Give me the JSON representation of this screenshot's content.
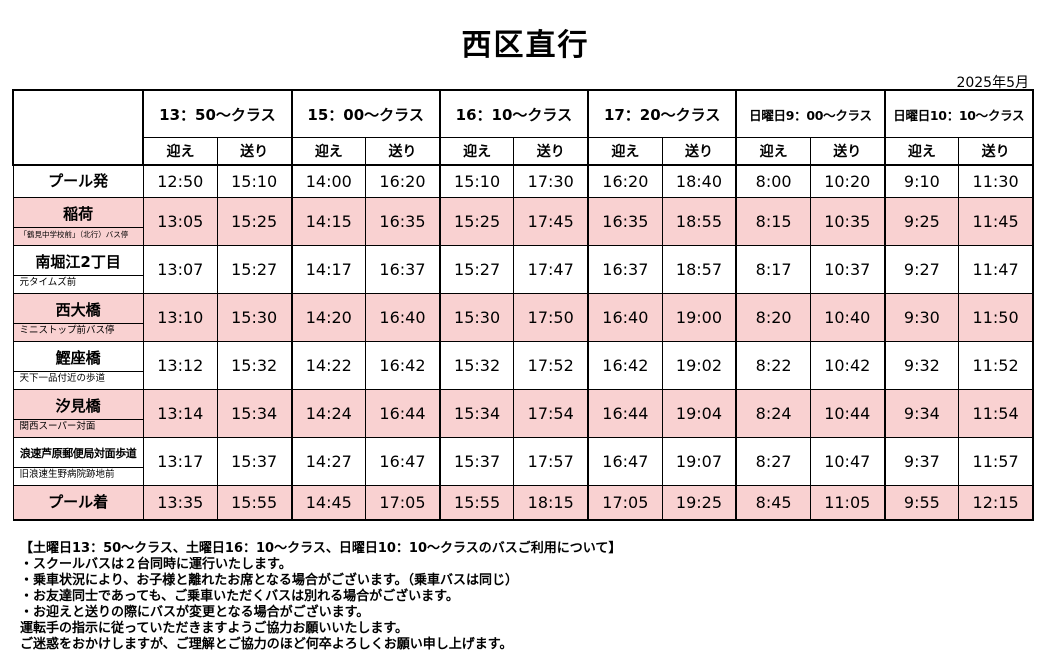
{
  "title": "西区直行",
  "date": "2025年5月",
  "classes": [
    "13：50〜クラス",
    "15：00〜クラス",
    "16：10〜クラス",
    "17：20〜クラス",
    "日曜日9：00〜クラス",
    "日曜日10：10〜クラス"
  ],
  "sub_headers": {
    "pickup": "迎え",
    "dropoff": "送り"
  },
  "rows": [
    {
      "name": "プール発",
      "note": "",
      "times": [
        "12:50",
        "15:10",
        "14:00",
        "16:20",
        "15:10",
        "17:30",
        "16:20",
        "18:40",
        "8:00",
        "10:20",
        "9:10",
        "11:30"
      ]
    },
    {
      "name": "稲荷",
      "note": "「鶴見中学校前」（北行）バス停",
      "times": [
        "13:05",
        "15:25",
        "14:15",
        "16:35",
        "15:25",
        "17:45",
        "16:35",
        "18:55",
        "8:15",
        "10:35",
        "9:25",
        "11:45"
      ]
    },
    {
      "name": "南堀江2丁目",
      "note": "元タイムズ前",
      "times": [
        "13:07",
        "15:27",
        "14:17",
        "16:37",
        "15:27",
        "17:47",
        "16:37",
        "18:57",
        "8:17",
        "10:37",
        "9:27",
        "11:47"
      ]
    },
    {
      "name": "西大橋",
      "note": "ミニストップ前バス停",
      "times": [
        "13:10",
        "15:30",
        "14:20",
        "16:40",
        "15:30",
        "17:50",
        "16:40",
        "19:00",
        "8:20",
        "10:40",
        "9:30",
        "11:50"
      ]
    },
    {
      "name": "鰹座橋",
      "note": "天下一品付近の歩道",
      "times": [
        "13:12",
        "15:32",
        "14:22",
        "16:42",
        "15:32",
        "17:52",
        "16:42",
        "19:02",
        "8:22",
        "10:42",
        "9:32",
        "11:52"
      ]
    },
    {
      "name": "汐見橋",
      "note": "関西スーパー対面",
      "times": [
        "13:14",
        "15:34",
        "14:24",
        "16:44",
        "15:34",
        "17:54",
        "16:44",
        "19:04",
        "8:24",
        "10:44",
        "9:34",
        "11:54"
      ]
    },
    {
      "name": "浪速芦原郵便局対面歩道",
      "note": "旧浪速生野病院跡地前",
      "times": [
        "13:17",
        "15:37",
        "14:27",
        "16:47",
        "15:37",
        "17:57",
        "16:47",
        "19:07",
        "8:27",
        "10:47",
        "9:37",
        "11:57"
      ]
    },
    {
      "name": "プール着",
      "note": "",
      "times": [
        "13:35",
        "15:55",
        "14:45",
        "17:05",
        "15:55",
        "18:15",
        "17:05",
        "19:25",
        "8:45",
        "11:05",
        "9:55",
        "12:15"
      ]
    }
  ],
  "notes": [
    "【土曜日13：50〜クラス、土曜日16：10〜クラス、日曜日10：10〜クラスのバスご利用について】",
    "・スクールバスは２台同時に運行いたします。",
    "・乗車状況により、お子様と離れたお席となる場合がございます。（乗車バスは同じ）",
    "・お友達同士であっても、ご乗車いただくバスは別れる場合がございます。",
    "・お迎えと送りの際にバスが変更となる場合がございます。",
    "運転手の指示に従っていただきますようご協力お願いいたします。",
    "ご迷惑をおかけしますが、ご理解とご協力のほど何卒よろしくお願い申し上げます。"
  ],
  "colors": {
    "highlight_row": "#f9d1d1",
    "border": "#000000"
  }
}
